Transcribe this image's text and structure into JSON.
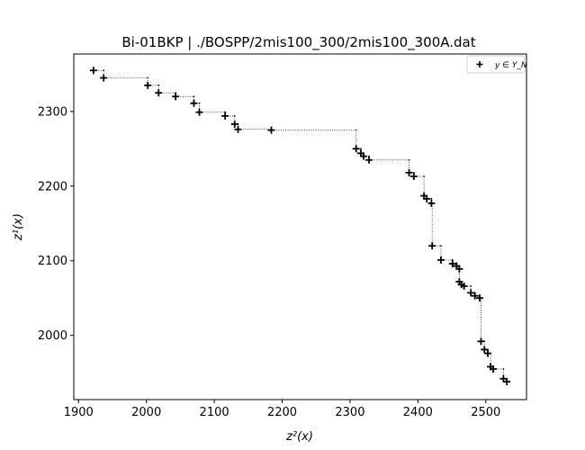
{
  "chart_data": {
    "type": "scatter",
    "title": "Bi-01BKP | ./BOSPP/2mis100_300/2mis100_300A.dat",
    "xlabel": "z²(x)",
    "ylabel": "z¹(x)",
    "xlim": [
      1893,
      2560
    ],
    "ylim": [
      1914,
      2377
    ],
    "x_ticks": [
      1900,
      2000,
      2100,
      2200,
      2300,
      2400,
      2500
    ],
    "y_ticks": [
      2000,
      2100,
      2200,
      2300
    ],
    "grid": false,
    "legend": {
      "position": "top-right",
      "entries": [
        "y ∈ Y_N"
      ]
    },
    "marker": "+",
    "connector": "dotted staircase",
    "series": [
      {
        "name": "y ∈ Y_N",
        "points": [
          [
            1922,
            2355
          ],
          [
            1937,
            2345
          ],
          [
            2002,
            2335
          ],
          [
            2018,
            2325
          ],
          [
            2043,
            2320
          ],
          [
            2070,
            2311
          ],
          [
            2078,
            2299
          ],
          [
            2116,
            2294
          ],
          [
            2130,
            2283
          ],
          [
            2135,
            2276
          ],
          [
            2184,
            2275
          ],
          [
            2309,
            2250
          ],
          [
            2316,
            2244
          ],
          [
            2320,
            2240
          ],
          [
            2328,
            2235
          ],
          [
            2387,
            2218
          ],
          [
            2394,
            2213
          ],
          [
            2409,
            2187
          ],
          [
            2413,
            2183
          ],
          [
            2420,
            2177
          ],
          [
            2421,
            2120
          ],
          [
            2434,
            2101
          ],
          [
            2451,
            2096
          ],
          [
            2457,
            2093
          ],
          [
            2461,
            2089
          ],
          [
            2461,
            2072
          ],
          [
            2464,
            2068
          ],
          [
            2468,
            2066
          ],
          [
            2478,
            2057
          ],
          [
            2484,
            2053
          ],
          [
            2491,
            2050
          ],
          [
            2493,
            1992
          ],
          [
            2498,
            1981
          ],
          [
            2503,
            1976
          ],
          [
            2507,
            1958
          ],
          [
            2511,
            1955
          ],
          [
            2526,
            1942
          ],
          [
            2531,
            1938
          ]
        ]
      }
    ]
  }
}
